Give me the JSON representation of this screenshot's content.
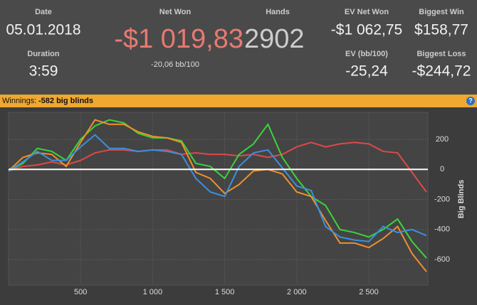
{
  "header": {
    "date_label": "Date",
    "date": "05.01.2018",
    "duration_label": "Duration",
    "duration": "3:59",
    "net_won_label": "Net Won",
    "net_won": "-$1 019,83",
    "bb_per_100": "-20,06 bb/100",
    "hands_label": "Hands",
    "hands": "2902",
    "ev_net_won_label": "EV Net Won",
    "ev_net_won": "-$1 062,75",
    "biggest_win_label": "Biggest Win",
    "biggest_win": "$158,77",
    "ev_bb_label": "EV (bb/100)",
    "ev_bb": "-25,24",
    "biggest_loss_label": "Biggest Loss",
    "biggest_loss": "-$244,72"
  },
  "banner": {
    "label": "Winnings:",
    "value": "-582 big blinds",
    "help": "?"
  },
  "chart_data": {
    "type": "line",
    "y_axis_label": "Big Blinds",
    "x": [
      0,
      100,
      200,
      300,
      400,
      500,
      600,
      700,
      800,
      900,
      1000,
      1100,
      1200,
      1300,
      1400,
      1500,
      1600,
      1700,
      1800,
      1900,
      2000,
      2100,
      2200,
      2300,
      2400,
      2500,
      2600,
      2700,
      2800,
      2900
    ],
    "series": [
      {
        "color": "#e04848",
        "values": [
          -10,
          20,
          30,
          50,
          30,
          60,
          110,
          130,
          130,
          120,
          130,
          130,
          100,
          110,
          100,
          100,
          90,
          100,
          80,
          100,
          150,
          180,
          150,
          170,
          180,
          170,
          120,
          110,
          -20,
          -150
        ]
      },
      {
        "color": "#3ad43a",
        "values": [
          -10,
          40,
          140,
          120,
          60,
          200,
          290,
          330,
          310,
          240,
          210,
          210,
          190,
          40,
          20,
          -60,
          100,
          170,
          300,
          80,
          -60,
          -180,
          -240,
          -400,
          -420,
          -450,
          -400,
          -330,
          -480,
          -590
        ]
      },
      {
        "color": "#f0902a",
        "values": [
          -10,
          80,
          110,
          100,
          20,
          180,
          330,
          300,
          300,
          250,
          220,
          210,
          180,
          -20,
          -60,
          -160,
          -100,
          -10,
          0,
          -30,
          -150,
          -180,
          -340,
          -490,
          -490,
          -520,
          -460,
          -380,
          -560,
          -680
        ]
      },
      {
        "color": "#3a90e0",
        "values": [
          -10,
          50,
          120,
          60,
          60,
          150,
          230,
          140,
          140,
          120,
          130,
          120,
          100,
          -60,
          -150,
          -180,
          20,
          110,
          130,
          10,
          -110,
          -140,
          -380,
          -450,
          -470,
          -480,
          -380,
          -420,
          -400,
          -440
        ]
      }
    ],
    "xlim": [
      0,
      2910
    ],
    "ylim": [
      -770,
      380
    ],
    "xticks": [
      500,
      {
        "value": 1000,
        "label": "1 000"
      },
      {
        "value": 1500,
        "label": "1 500"
      },
      {
        "value": 2000,
        "label": "2 000"
      },
      {
        "value": 2500,
        "label": "2 500"
      }
    ],
    "yticks": [
      200,
      0,
      -200,
      -400,
      -600
    ],
    "grid": true
  }
}
